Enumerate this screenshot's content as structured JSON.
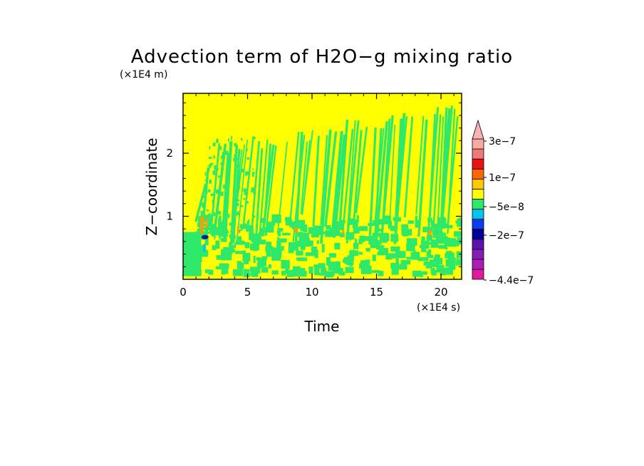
{
  "chart_data": {
    "type": "heatmap",
    "title": "Advection term of H2O−g mixing ratio",
    "xlabel": "Time",
    "ylabel": "Z−coordinate",
    "x_unit": "(×1E4 s)",
    "y_unit": "(×1E4 m)",
    "xlim": [
      0,
      21.6
    ],
    "ylim": [
      0,
      2.95
    ],
    "x_ticks": [
      0,
      5,
      10,
      15,
      20
    ],
    "x_tick_labels": [
      "0",
      "5",
      "10",
      "15",
      "20"
    ],
    "y_ticks": [
      1,
      2
    ],
    "y_tick_labels": [
      "1",
      "2"
    ],
    "background_color": "#ffff00",
    "field_colors": {
      "positive_small": "#ffff00",
      "negative_small": "#2ee86a",
      "positive_medium": "#ff9a00",
      "negative_large": "#00189c"
    },
    "colorbar": {
      "levels": [
        "-4.4e-7",
        "-3.8e-7",
        "-3.2e-7",
        "-2.6e-7",
        "-2e-7",
        "-1.4e-7",
        "-1e-7",
        "-5e-8",
        "0",
        "5e-8",
        "1e-7",
        "1.6e-7",
        "2.2e-7",
        "3e-7"
      ],
      "colors": [
        "#e0199e",
        "#b01ab6",
        "#8a1ab4",
        "#5d12b0",
        "#000096",
        "#0a3cf0",
        "#00c3f0",
        "#2ee86a",
        "#ffff00",
        "#ffc800",
        "#ff6600",
        "#e81414",
        "#f07878",
        "#f8aaa0"
      ],
      "labels": [
        "3e−7",
        "1e−7",
        "−5e−8",
        "−2e−7",
        "−4.4e−7"
      ],
      "extend": "max",
      "triangle_color": "#f8b4b4"
    }
  }
}
